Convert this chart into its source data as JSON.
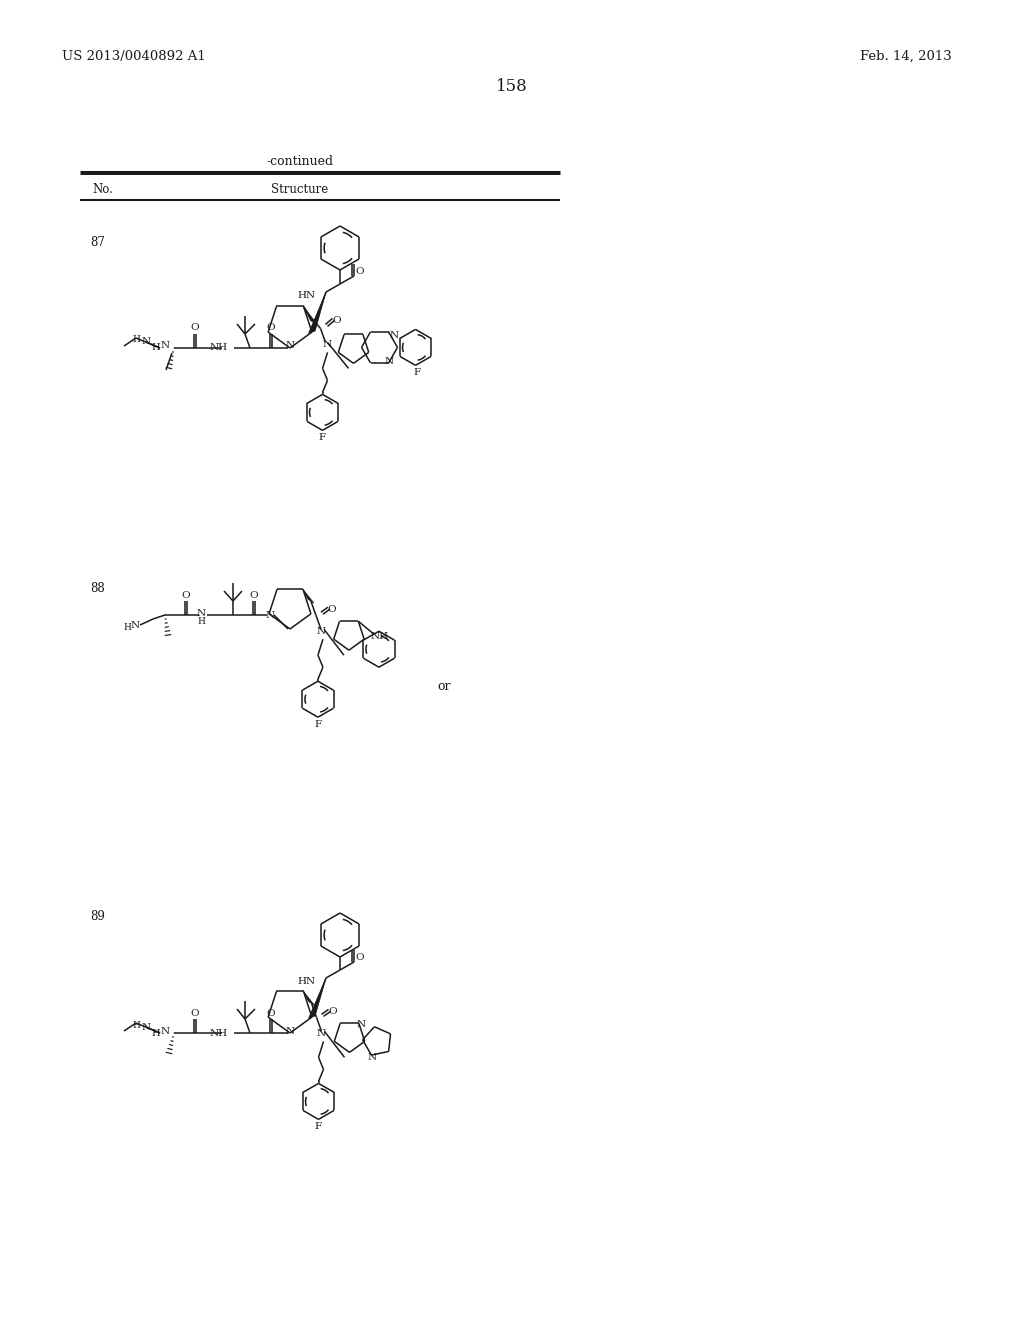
{
  "patent_number": "US 2013/0040892 A1",
  "patent_date": "Feb. 14, 2013",
  "page_number": "158",
  "table_header": "-continued",
  "col1": "No.",
  "col2": "Structure",
  "row_numbers": [
    "87",
    "88",
    "89"
  ],
  "or_text": "or",
  "bg_color": "#ffffff",
  "text_color": "#1a1a1a",
  "bond_color": "#1a1a1a",
  "bond_lw": 1.1,
  "font_size_header": 9.5,
  "font_size_page": 12,
  "font_size_col": 8.5,
  "font_size_atom": 7.5,
  "font_size_or": 9
}
